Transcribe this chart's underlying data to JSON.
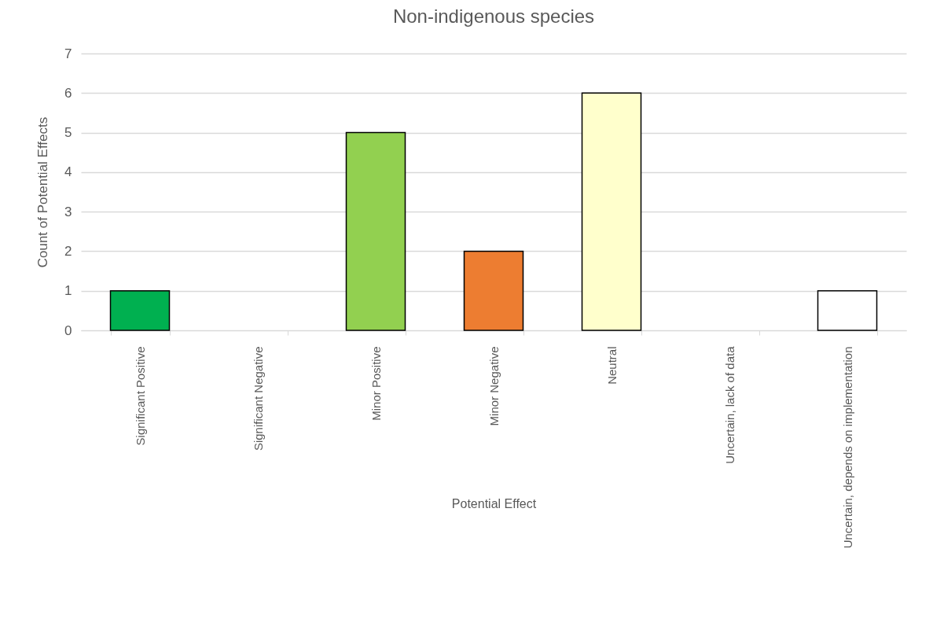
{
  "chart_data": {
    "type": "bar",
    "title": "Non-indigenous species",
    "xlabel": "Potential Effect",
    "ylabel": "Count of Potential Effects",
    "categories": [
      "Significant Positive",
      "Significant Negative",
      "Minor Positive",
      "Minor Negative",
      "Neutral",
      "Uncertain, lack of data",
      "Uncertain, depends on implementation"
    ],
    "values": [
      1,
      0,
      5,
      2,
      6,
      0,
      1
    ],
    "colors": [
      "#00b050",
      "#ffffff",
      "#92d050",
      "#ed7d31",
      "#ffffcc",
      "#ffffff",
      "#ffffff"
    ],
    "ylim": [
      0,
      7
    ],
    "yticks": [
      0,
      1,
      2,
      3,
      4,
      5,
      6,
      7
    ],
    "grid": "y"
  }
}
